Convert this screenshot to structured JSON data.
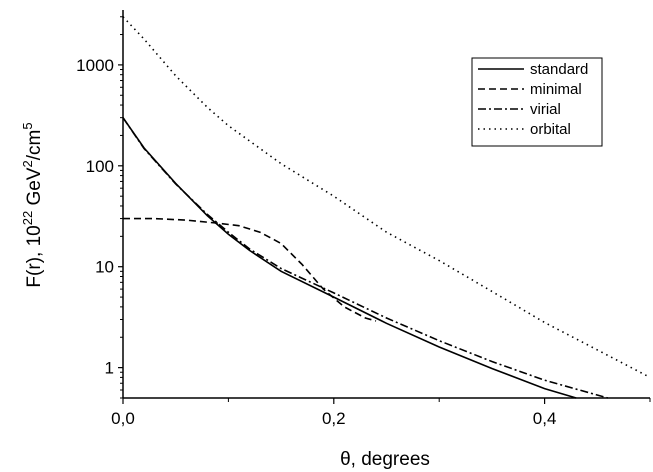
{
  "chart_data": {
    "type": "line",
    "xlabel": "θ, degrees",
    "ylabel": {
      "base": "F(r), 10",
      "exp1": "22",
      "mid": " GeV",
      "exp2": "2",
      "mid2": "/cm",
      "exp3": "5"
    },
    "xlim": [
      0,
      0.5
    ],
    "ylim": [
      0.5,
      3500
    ],
    "yscale": "log",
    "x_ticks": [
      {
        "value": 0.0,
        "label": "0,0"
      },
      {
        "value": 0.2,
        "label": "0,2"
      },
      {
        "value": 0.4,
        "label": "0,4"
      }
    ],
    "y_ticks": [
      {
        "value": 1,
        "label": "1"
      },
      {
        "value": 10,
        "label": "10"
      },
      {
        "value": 100,
        "label": "100"
      },
      {
        "value": 1000,
        "label": "1000"
      }
    ],
    "legend_position": "top-right",
    "grid": false,
    "series": [
      {
        "name": "standard",
        "style": "solid",
        "x": [
          0.0,
          0.02,
          0.05,
          0.08,
          0.1,
          0.12,
          0.15,
          0.2,
          0.25,
          0.3,
          0.35,
          0.4,
          0.43
        ],
        "y": [
          300,
          150,
          67,
          32,
          21,
          14.5,
          9,
          5,
          2.75,
          1.6,
          0.98,
          0.62,
          0.5
        ]
      },
      {
        "name": "minimal",
        "style": "dashed",
        "x": [
          0.0,
          0.03,
          0.06,
          0.09,
          0.11,
          0.13,
          0.15,
          0.17,
          0.19,
          0.21,
          0.23,
          0.24
        ],
        "y": [
          30,
          30,
          29,
          27,
          25.5,
          22,
          17,
          10.5,
          6,
          4,
          3.1,
          2.9
        ]
      },
      {
        "name": "virial",
        "style": "dashdot",
        "x": [
          0.0,
          0.02,
          0.05,
          0.08,
          0.1,
          0.12,
          0.15,
          0.2,
          0.25,
          0.3,
          0.35,
          0.4,
          0.46
        ],
        "y": [
          300,
          148,
          66,
          33,
          22,
          15,
          9.6,
          5.5,
          3.1,
          1.85,
          1.15,
          0.75,
          0.5
        ]
      },
      {
        "name": "orbital",
        "style": "dotted",
        "x": [
          0.0,
          0.02,
          0.05,
          0.08,
          0.1,
          0.15,
          0.2,
          0.25,
          0.3,
          0.35,
          0.4,
          0.45,
          0.5
        ],
        "y": [
          3000,
          1800,
          780,
          380,
          250,
          105,
          50,
          22,
          11.5,
          5.7,
          2.8,
          1.5,
          0.8
        ]
      }
    ]
  }
}
